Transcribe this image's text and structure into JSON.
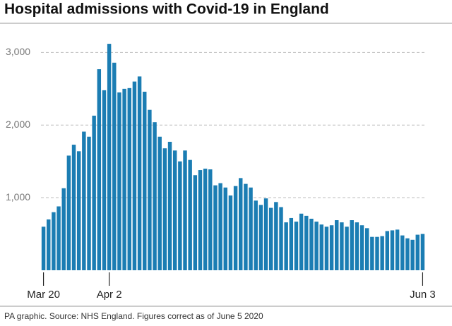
{
  "chart_data": {
    "type": "bar",
    "title": "Hospital admissions with Covid-19 in England",
    "source": "PA graphic. Source: NHS England. Figures correct as of June 5 2020",
    "color": "#1b7db3",
    "grid": true,
    "ylim": [
      0,
      3150
    ],
    "yticks": [
      {
        "value": 1000,
        "label": "1,000"
      },
      {
        "value": 2000,
        "label": "2,000"
      },
      {
        "value": 3000,
        "label": "3,000"
      }
    ],
    "categories": [
      "Mar 20",
      null,
      null,
      null,
      null,
      null,
      null,
      null,
      null,
      null,
      null,
      null,
      null,
      "Apr 2",
      null,
      null,
      null,
      null,
      null,
      null,
      null,
      null,
      null,
      null,
      null,
      null,
      null,
      null,
      null,
      null,
      null,
      null,
      null,
      null,
      null,
      null,
      null,
      null,
      null,
      null,
      null,
      null,
      null,
      null,
      null,
      null,
      null,
      null,
      null,
      null,
      null,
      null,
      null,
      null,
      null,
      null,
      null,
      null,
      null,
      null,
      null,
      null,
      null,
      null,
      null,
      null,
      null,
      null,
      null,
      null,
      null,
      null,
      null,
      null,
      null,
      "Jun 3"
    ],
    "values": [
      600,
      700,
      800,
      880,
      1130,
      1580,
      1730,
      1640,
      1910,
      1840,
      2130,
      2770,
      2480,
      3120,
      2860,
      2450,
      2500,
      2510,
      2600,
      2670,
      2460,
      2210,
      2040,
      1840,
      1680,
      1770,
      1650,
      1500,
      1650,
      1520,
      1310,
      1380,
      1400,
      1390,
      1170,
      1200,
      1140,
      1030,
      1160,
      1270,
      1190,
      1140,
      960,
      900,
      990,
      860,
      940,
      870,
      660,
      720,
      670,
      780,
      750,
      710,
      670,
      630,
      600,
      620,
      690,
      660,
      600,
      690,
      660,
      620,
      580,
      460,
      460,
      470,
      540,
      550,
      560,
      480,
      440,
      420,
      490,
      500
    ]
  }
}
